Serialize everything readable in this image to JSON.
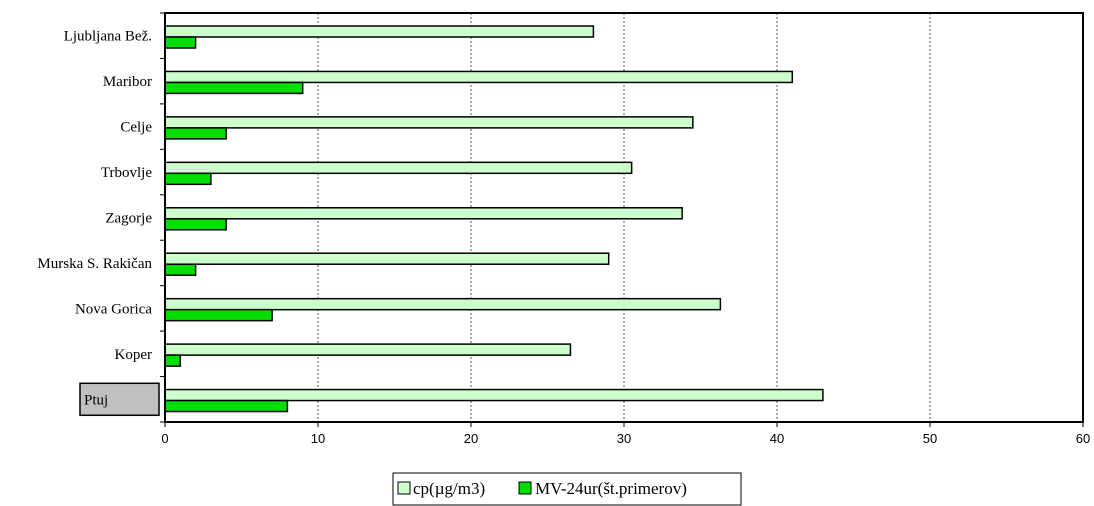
{
  "chart_data": {
    "type": "bar",
    "orientation": "horizontal",
    "categories": [
      "Ljubljana Bež.",
      "Maribor",
      "Celje",
      "Trbovlje",
      "Zagorje",
      "Murska S. Rakičan",
      "Nova Gorica",
      "Koper",
      "Ptuj"
    ],
    "highlighted_category": "Ptuj",
    "series": [
      {
        "name": "cp(µg/m3)",
        "color": "#ccffcc",
        "values": [
          28,
          41,
          34.5,
          30.5,
          33.8,
          29,
          36.3,
          26.5,
          43
        ]
      },
      {
        "name": "MV-24ur(št.primerov)",
        "color": "#00dd00",
        "values": [
          2,
          9,
          4,
          3,
          4,
          2,
          7,
          1,
          8
        ]
      }
    ],
    "xlim": [
      0,
      60
    ],
    "xticks": [
      "0",
      "10",
      "20",
      "30",
      "40",
      "50",
      "60"
    ],
    "grid": "vertical dashed",
    "legend_position": "bottom-center",
    "title": "",
    "xlabel": "",
    "ylabel": ""
  }
}
